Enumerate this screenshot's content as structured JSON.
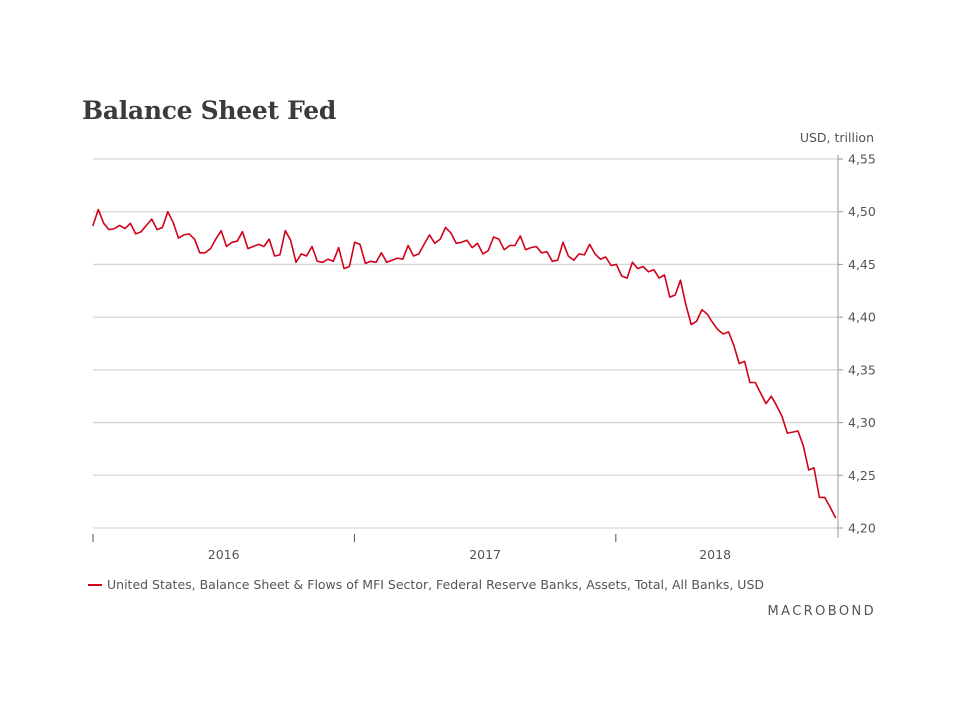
{
  "chart_data": {
    "type": "line",
    "title": "Balance Sheet Fed",
    "ylabel": "USD, trillion",
    "xlabel": "",
    "ylim": [
      4.2,
      4.55
    ],
    "yticks": [
      "4,55",
      "4,50",
      "4,45",
      "4,40",
      "4,35",
      "4,30",
      "4,25",
      "4,20"
    ],
    "ytick_values": [
      4.55,
      4.5,
      4.45,
      4.4,
      4.35,
      4.3,
      4.25,
      4.2
    ],
    "x_period": {
      "start": 2015.5,
      "end": 2018.34
    },
    "xlim": [
      2015.5,
      2018.35
    ],
    "xticks": [
      2015.5,
      2016.5,
      2017.5
    ],
    "xtick_labels": [
      {
        "label": "2016",
        "value": 2016.0
      },
      {
        "label": "2017",
        "value": 2017.0
      },
      {
        "label": "2018",
        "value": 2017.88
      }
    ],
    "grid": true,
    "series": [
      {
        "name": "United States, Balance Sheet & Flows of MFI Sector, Federal Reserve Banks, Assets, Total, All Banks, USD",
        "color": "#d0021b",
        "values": [
          4.487,
          4.502,
          4.489,
          4.483,
          4.484,
          4.487,
          4.484,
          4.489,
          4.479,
          4.481,
          4.487,
          4.493,
          4.483,
          4.485,
          4.5,
          4.49,
          4.475,
          4.478,
          4.479,
          4.474,
          4.461,
          4.461,
          4.465,
          4.474,
          4.482,
          4.467,
          4.471,
          4.472,
          4.481,
          4.465,
          4.467,
          4.469,
          4.467,
          4.474,
          4.458,
          4.459,
          4.482,
          4.473,
          4.452,
          4.46,
          4.458,
          4.467,
          4.453,
          4.452,
          4.455,
          4.453,
          4.466,
          4.446,
          4.448,
          4.471,
          4.469,
          4.451,
          4.453,
          4.452,
          4.461,
          4.452,
          4.454,
          4.456,
          4.455,
          4.468,
          4.458,
          4.46,
          4.469,
          4.478,
          4.47,
          4.474,
          4.485,
          4.48,
          4.47,
          4.471,
          4.473,
          4.466,
          4.47,
          4.46,
          4.463,
          4.476,
          4.474,
          4.464,
          4.468,
          4.468,
          4.477,
          4.464,
          4.466,
          4.467,
          4.461,
          4.462,
          4.453,
          4.454,
          4.471,
          4.458,
          4.454,
          4.46,
          4.459,
          4.469,
          4.46,
          4.455,
          4.457,
          4.449,
          4.45,
          4.439,
          4.437,
          4.452,
          4.446,
          4.448,
          4.443,
          4.445,
          4.437,
          4.44,
          4.419,
          4.421,
          4.435,
          4.412,
          4.393,
          4.396,
          4.407,
          4.403,
          4.395,
          4.388,
          4.384,
          4.386,
          4.373,
          4.356,
          4.358,
          4.338,
          4.338,
          4.328,
          4.318,
          4.325,
          4.316,
          4.306,
          4.29,
          4.291,
          4.292,
          4.278,
          4.255,
          4.257,
          4.229,
          4.229,
          4.22,
          4.21
        ]
      }
    ]
  },
  "legend": {
    "label": "United States, Balance Sheet & Flows of MFI Sector, Federal Reserve Banks, Assets, Total, All Banks, USD"
  },
  "brand": {
    "text": "MACROBOND"
  },
  "colors": {
    "series": "#d0021b",
    "grid": "#d6d6d6",
    "axis": "#9a9a9a",
    "text": "#555555"
  }
}
